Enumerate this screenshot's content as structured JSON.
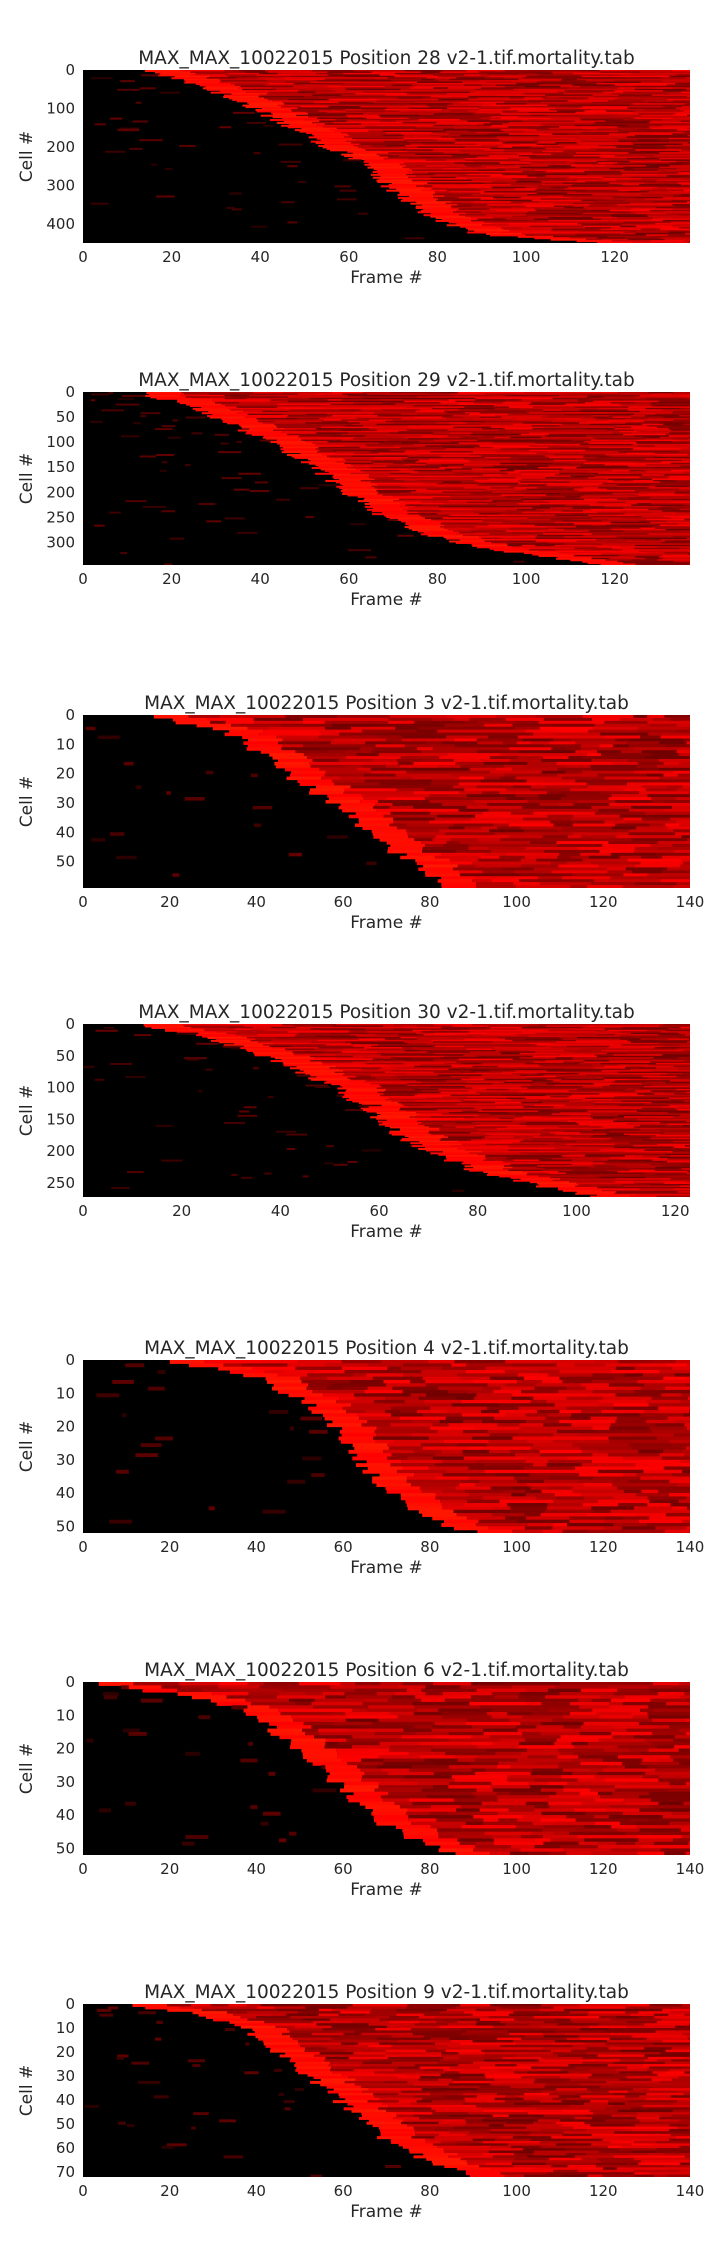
{
  "figure": {
    "background": "#ffffff",
    "colormap": [
      "#000000",
      "#ff0000"
    ]
  },
  "chart_data": [
    {
      "type": "heatmap",
      "title": "MAX_MAX_10022015 Position 28 v2-1.tif.mortality.tab",
      "xlabel": "Frame #",
      "ylabel": "Cell #",
      "xlim": [
        0,
        137
      ],
      "ylim": [
        0,
        450
      ],
      "xticks": [
        0,
        20,
        40,
        60,
        80,
        100,
        120
      ],
      "yticks": [
        0,
        100,
        200,
        300,
        400
      ],
      "onset_curve": [
        [
          0,
          12
        ],
        [
          0.05,
          22
        ],
        [
          0.15,
          33
        ],
        [
          0.3,
          45
        ],
        [
          0.45,
          56
        ],
        [
          0.5,
          61
        ],
        [
          0.55,
          64
        ],
        [
          0.7,
          70
        ],
        [
          0.85,
          79
        ],
        [
          0.95,
          90
        ],
        [
          1,
          118
        ]
      ],
      "colormap": "black-to-red"
    },
    {
      "type": "heatmap",
      "title": "MAX_MAX_10022015 Position 29 v2-1.tif.mortality.tab",
      "xlabel": "Frame #",
      "ylabel": "Cell #",
      "xlim": [
        0,
        137
      ],
      "ylim": [
        0,
        345
      ],
      "xticks": [
        0,
        20,
        40,
        60,
        80,
        100,
        120
      ],
      "yticks": [
        0,
        50,
        100,
        150,
        200,
        250,
        300
      ],
      "onset_curve": [
        [
          0,
          12
        ],
        [
          0.08,
          25
        ],
        [
          0.2,
          35
        ],
        [
          0.35,
          47
        ],
        [
          0.5,
          56
        ],
        [
          0.6,
          61
        ],
        [
          0.7,
          66
        ],
        [
          0.8,
          75
        ],
        [
          0.9,
          90
        ],
        [
          1,
          118
        ]
      ],
      "colormap": "black-to-red"
    },
    {
      "type": "heatmap",
      "title": "MAX_MAX_10022015 Position 3 v2-1.tif.mortality.tab",
      "xlabel": "Frame #",
      "ylabel": "Cell #",
      "xlim": [
        0,
        140
      ],
      "ylim": [
        0,
        59
      ],
      "xticks": [
        0,
        20,
        40,
        60,
        80,
        100,
        120,
        140
      ],
      "yticks": [
        0,
        10,
        20,
        30,
        40,
        50
      ],
      "onset_curve": [
        [
          0,
          15
        ],
        [
          0.1,
          33
        ],
        [
          0.2,
          40
        ],
        [
          0.35,
          48
        ],
        [
          0.5,
          57
        ],
        [
          0.6,
          63
        ],
        [
          0.75,
          70
        ],
        [
          0.9,
          78
        ],
        [
          1,
          85
        ]
      ],
      "colormap": "black-to-red"
    },
    {
      "type": "heatmap",
      "title": "MAX_MAX_10022015 Position 30 v2-1.tif.mortality.tab",
      "xlabel": "Frame #",
      "ylabel": "Cell #",
      "xlim": [
        0,
        123
      ],
      "ylim": [
        0,
        272
      ],
      "xticks": [
        0,
        20,
        40,
        60,
        80,
        100,
        120
      ],
      "yticks": [
        0,
        50,
        100,
        150,
        200,
        250
      ],
      "onset_curve": [
        [
          0,
          12
        ],
        [
          0.1,
          28
        ],
        [
          0.2,
          38
        ],
        [
          0.35,
          50
        ],
        [
          0.5,
          58
        ],
        [
          0.6,
          62
        ],
        [
          0.7,
          68
        ],
        [
          0.85,
          80
        ],
        [
          0.95,
          95
        ],
        [
          1,
          105
        ]
      ],
      "colormap": "black-to-red"
    },
    {
      "type": "heatmap",
      "title": "MAX_MAX_10022015 Position 4 v2-1.tif.mortality.tab",
      "xlabel": "Frame #",
      "ylabel": "Cell #",
      "xlim": [
        0,
        140
      ],
      "ylim": [
        0,
        52
      ],
      "xticks": [
        0,
        20,
        40,
        60,
        80,
        100,
        120,
        140
      ],
      "yticks": [
        0,
        10,
        20,
        30,
        40,
        50
      ],
      "onset_curve": [
        [
          0,
          20
        ],
        [
          0.1,
          40
        ],
        [
          0.25,
          52
        ],
        [
          0.4,
          58
        ],
        [
          0.55,
          62
        ],
        [
          0.7,
          68
        ],
        [
          0.85,
          76
        ],
        [
          0.95,
          84
        ],
        [
          1,
          92
        ]
      ],
      "colormap": "black-to-red"
    },
    {
      "type": "heatmap",
      "title": "MAX_MAX_10022015 Position 6 v2-1.tif.mortality.tab",
      "xlabel": "Frame #",
      "ylabel": "Cell #",
      "xlim": [
        0,
        140
      ],
      "ylim": [
        0,
        52
      ],
      "xticks": [
        0,
        20,
        40,
        60,
        80,
        100,
        120,
        140
      ],
      "yticks": [
        0,
        10,
        20,
        30,
        40,
        50
      ],
      "onset_curve": [
        [
          0,
          2
        ],
        [
          0.1,
          30
        ],
        [
          0.2,
          40
        ],
        [
          0.35,
          48
        ],
        [
          0.5,
          55
        ],
        [
          0.65,
          61
        ],
        [
          0.8,
          68
        ],
        [
          0.9,
          76
        ],
        [
          1,
          85
        ]
      ],
      "colormap": "black-to-red"
    },
    {
      "type": "heatmap",
      "title": "MAX_MAX_10022015 Position 9 v2-1.tif.mortality.tab",
      "xlabel": "Frame #",
      "ylabel": "Cell #",
      "xlim": [
        0,
        140
      ],
      "ylim": [
        0,
        72
      ],
      "xticks": [
        0,
        20,
        40,
        60,
        80,
        100,
        120,
        140
      ],
      "yticks": [
        0,
        10,
        20,
        30,
        40,
        50,
        60,
        70
      ],
      "onset_curve": [
        [
          0,
          10
        ],
        [
          0.05,
          25
        ],
        [
          0.15,
          38
        ],
        [
          0.3,
          46
        ],
        [
          0.45,
          54
        ],
        [
          0.6,
          61
        ],
        [
          0.75,
          68
        ],
        [
          0.85,
          75
        ],
        [
          0.95,
          85
        ],
        [
          1,
          92
        ]
      ],
      "colormap": "black-to-red"
    }
  ]
}
